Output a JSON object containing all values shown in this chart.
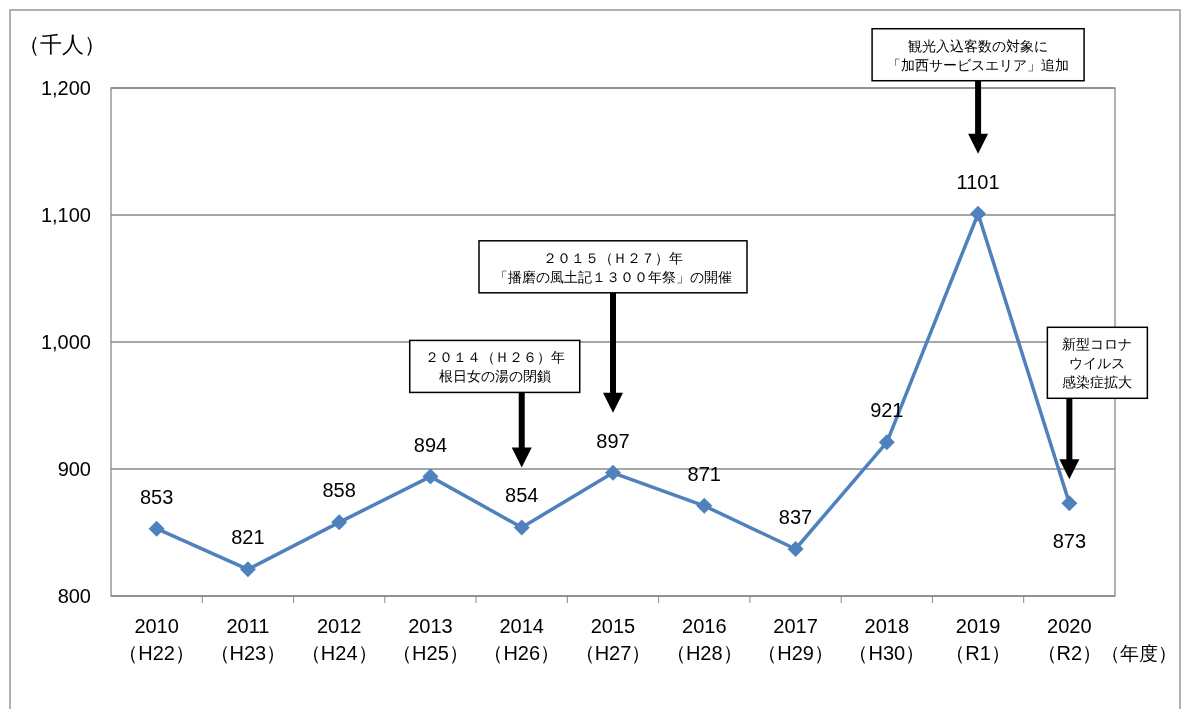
{
  "chart_data": {
    "type": "line",
    "categories": [
      "2010\n（H22）",
      "2011\n（H23）",
      "2012\n（H24）",
      "2013\n（H25）",
      "2014\n（H26）",
      "2015\n（H27）",
      "2016\n（H28）",
      "2017\n（H29）",
      "2018\n（H30）",
      "2019\n（R1）",
      "2020\n（R2）"
    ],
    "series": [
      {
        "color": "#4f81bd",
        "values": [
          853,
          821,
          858,
          894,
          854,
          897,
          871,
          837,
          921,
          1101,
          873
        ]
      }
    ],
    "ylabel": "（千人）",
    "xlabel": "（年度）",
    "ylim": [
      800,
      1200
    ],
    "yticks": [
      {
        "value": 800,
        "label": "800"
      },
      {
        "value": 900,
        "label": "900"
      },
      {
        "value": 1000,
        "label": "1,000"
      },
      {
        "value": 1100,
        "label": "1,100"
      },
      {
        "value": 1200,
        "label": "1,200"
      }
    ],
    "grid": "y",
    "marker": "diamond",
    "line_style": "solid",
    "data_labels": true,
    "annotations": [
      "２０１４（Ｈ２６）年根日女の湯の閉鎖",
      "２０１５（Ｈ２７）年「播磨の風土記１３００年祭」の開催",
      "観光入込客数の対象に「加西サービスエリア」追加",
      "新型コロナウイルス感染症拡大"
    ]
  }
}
